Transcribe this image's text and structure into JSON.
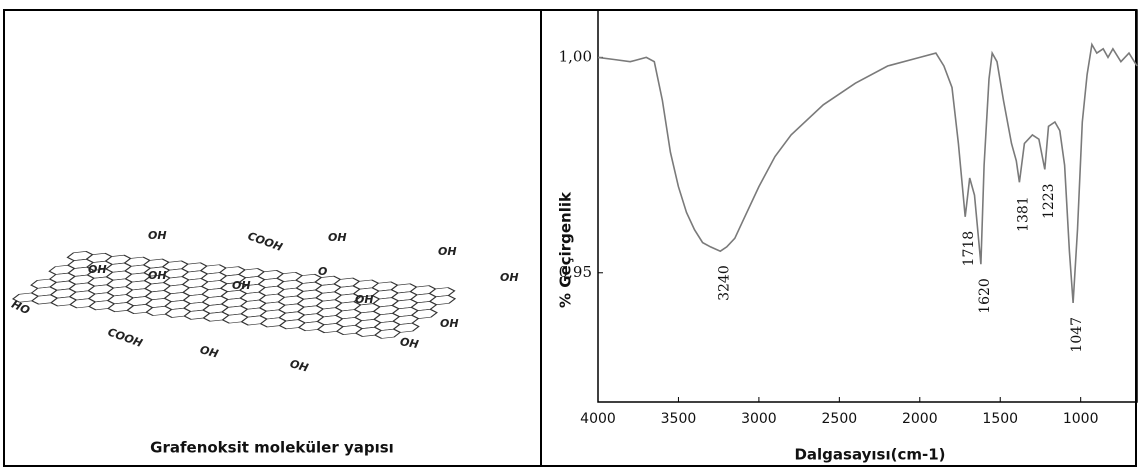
{
  "structure": {
    "caption": "Grafenoksit moleküler yapısı",
    "groups": [
      "OH",
      "COOH",
      "OH",
      "OH",
      "OH",
      "OH",
      "OH",
      "O",
      "OH",
      "OH",
      "HO",
      "COOH",
      "OH",
      "OH",
      "OH",
      "OH"
    ]
  },
  "chart_data": {
    "type": "line",
    "xlabel": "Dalgasayısı(cm-1)",
    "ylabel": "% Geçirgenlik",
    "x": [
      4000,
      3900,
      3800,
      3700,
      3650,
      3600,
      3550,
      3500,
      3450,
      3400,
      3350,
      3300,
      3240,
      3200,
      3150,
      3100,
      3000,
      2900,
      2800,
      2600,
      2400,
      2200,
      2000,
      1900,
      1850,
      1800,
      1760,
      1718,
      1690,
      1660,
      1620,
      1600,
      1570,
      1550,
      1520,
      1480,
      1430,
      1400,
      1381,
      1350,
      1300,
      1260,
      1223,
      1200,
      1160,
      1130,
      1100,
      1070,
      1047,
      1020,
      990,
      960,
      930,
      900,
      860,
      830,
      800,
      750,
      700,
      650
    ],
    "series": [
      {
        "color": "#7a7a7a",
        "values": [
          1.0,
          0.9995,
          0.999,
          1.0,
          0.999,
          0.99,
          0.978,
          0.97,
          0.964,
          0.96,
          0.957,
          0.956,
          0.955,
          0.956,
          0.958,
          0.962,
          0.97,
          0.977,
          0.982,
          0.989,
          0.994,
          0.998,
          1.0,
          1.001,
          0.998,
          0.993,
          0.98,
          0.963,
          0.972,
          0.968,
          0.952,
          0.975,
          0.995,
          1.001,
          0.999,
          0.99,
          0.98,
          0.976,
          0.971,
          0.98,
          0.982,
          0.981,
          0.974,
          0.984,
          0.985,
          0.983,
          0.975,
          0.955,
          0.943,
          0.96,
          0.985,
          0.996,
          1.003,
          1.001,
          1.002,
          1.0,
          1.002,
          0.999,
          1.001,
          0.998
        ]
      }
    ],
    "peaks": [
      3240,
      1718,
      1620,
      1381,
      1223,
      1047
    ],
    "xlim": [
      4000,
      650
    ],
    "xticks": [
      4000,
      3500,
      3000,
      2500,
      2000,
      1500,
      1000
    ],
    "ylim": [
      0.92,
      1.011
    ],
    "yticks": [
      {
        "value": 1.0,
        "label": "1,00"
      },
      {
        "value": 0.95,
        "label": "0,95"
      }
    ]
  }
}
